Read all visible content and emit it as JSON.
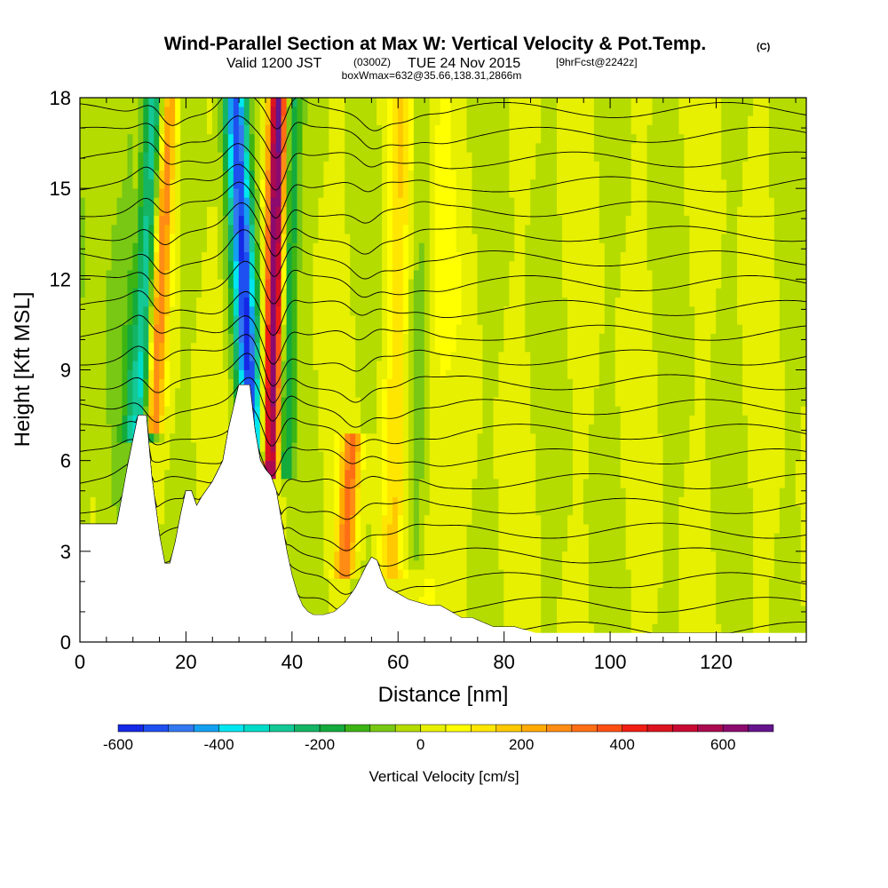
{
  "chart_data": {
    "type": "heatmap",
    "title": "Wind-Parallel Section at Max W: Vertical Velocity & Pot.Temp.",
    "title_mark": "(C)",
    "subtitle": {
      "valid": "Valid 1200 JST",
      "utc": "(0300Z)",
      "date": "TUE 24 Nov 2015",
      "forecast": "[9hrFcst@2242z]"
    },
    "box_info": "boxWmax=632@35.66,138.31,2866m",
    "xlabel": "Distance [nm]",
    "ylabel": "Height [Kft MSL]",
    "xlim": [
      0,
      137
    ],
    "ylim": [
      0,
      18
    ],
    "x_ticks": [
      0,
      20,
      40,
      60,
      80,
      100,
      120
    ],
    "y_ticks": [
      0,
      3,
      6,
      9,
      12,
      15,
      18
    ],
    "colorbar": {
      "label": "Vertical Velocity [cm/s]",
      "range": [
        -600,
        700
      ],
      "step": 50,
      "ticks": [
        -600,
        -400,
        -200,
        0,
        200,
        400,
        600
      ],
      "colors": [
        "#1428e6",
        "#1e50f0",
        "#3278f0",
        "#14a0f0",
        "#00e6f0",
        "#00dcc8",
        "#14c896",
        "#14b464",
        "#14aa3c",
        "#3cb414",
        "#78c814",
        "#b4dc00",
        "#e6f000",
        "#ffff00",
        "#ffe600",
        "#ffc800",
        "#ffaa00",
        "#ff8c14",
        "#ff6e14",
        "#ff5014",
        "#f01e14",
        "#dc141e",
        "#c80a32",
        "#aa0a50",
        "#8c0a6e",
        "#64148c"
      ]
    },
    "terrain_profile": {
      "x": [
        0,
        7,
        9,
        11,
        12.5,
        13.5,
        15,
        16,
        17,
        18,
        19,
        20,
        21,
        22,
        23,
        25,
        27,
        28,
        30,
        32,
        33,
        34,
        35,
        36,
        37,
        38,
        39,
        40,
        41,
        42,
        43,
        44,
        45,
        46,
        48,
        50,
        52,
        54,
        55,
        56,
        57,
        58,
        60,
        62,
        64,
        66,
        68,
        70,
        72,
        74,
        78,
        82,
        86,
        90,
        94,
        100,
        110,
        120,
        130,
        137
      ],
      "height_kft": [
        3.9,
        3.9,
        5.8,
        7.5,
        7.5,
        5.5,
        3.5,
        2.6,
        2.6,
        3.3,
        4.2,
        5.0,
        5.0,
        4.5,
        4.8,
        5.3,
        6.0,
        7.0,
        8.5,
        8.5,
        7.0,
        6.0,
        5.7,
        5.5,
        5.0,
        4.0,
        3.0,
        2.2,
        1.6,
        1.2,
        1.0,
        0.9,
        0.9,
        0.9,
        1.0,
        1.3,
        1.8,
        2.5,
        2.8,
        2.7,
        2.2,
        1.8,
        1.6,
        1.4,
        1.3,
        1.2,
        1.2,
        1.0,
        0.8,
        0.8,
        0.5,
        0.5,
        0.3,
        0.3,
        0.3,
        0.3,
        0.3,
        0.3,
        0.3,
        0.3
      ]
    },
    "velocity_features": [
      {
        "x": 11.5,
        "width_nm": 2.4,
        "z_bottom": 7.2,
        "z_top": 18,
        "tilt_nm_per_kft": 0.28,
        "w": -350
      },
      {
        "x": 13.8,
        "width_nm": 1.8,
        "z_bottom": 7.5,
        "z_top": 18,
        "tilt_nm_per_kft": 0.28,
        "w": 380
      },
      {
        "x": 32.5,
        "width_nm": 2.2,
        "z_bottom": 6.5,
        "z_top": 18,
        "tilt_nm_per_kft": -0.28,
        "w": -520
      },
      {
        "x": 36.0,
        "width_nm": 1.6,
        "z_bottom": 5.8,
        "z_top": 18,
        "tilt_nm_per_kft": 0.12,
        "w": 640
      },
      {
        "x": 38.8,
        "width_nm": 1.6,
        "z_bottom": 6.0,
        "z_top": 18,
        "tilt_nm_per_kft": 0.12,
        "w": -220
      },
      {
        "x": 50.0,
        "width_nm": 1.8,
        "z_bottom": 2.5,
        "z_top": 6.5,
        "tilt_nm_per_kft": 0.35,
        "w": 300
      },
      {
        "x": 59.0,
        "width_nm": 2.4,
        "z_bottom": 2.5,
        "z_top": 18,
        "tilt_nm_per_kft": 0.12,
        "w": 130
      },
      {
        "x": 63.0,
        "width_nm": 2.5,
        "z_bottom": 3.0,
        "z_top": 18,
        "tilt_nm_per_kft": 0.12,
        "w": -90
      },
      {
        "x": 66.0,
        "width_nm": 3.0,
        "z_bottom": 1.5,
        "z_top": 18,
        "tilt_nm_per_kft": 0.08,
        "w": 80
      }
    ],
    "theta_contours": {
      "count": 22,
      "label_value": "30"
    }
  }
}
